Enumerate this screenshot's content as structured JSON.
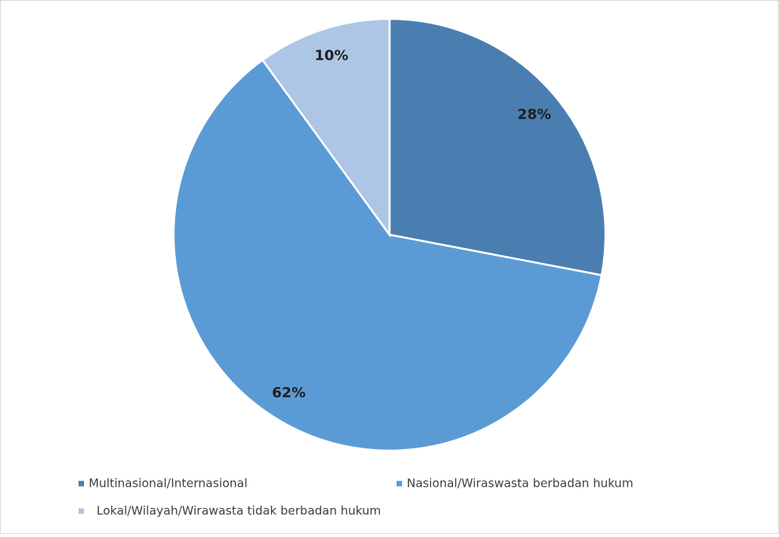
{
  "chart_data": {
    "type": "pie",
    "categories": [
      "Multinasional/Internasional",
      "Nasional/Wiraswasta berbadan hukum",
      "Lokal/Wilayah/Wirawasta tidak berbadan hukum"
    ],
    "values": [
      28,
      62,
      10
    ],
    "value_labels": [
      "28%",
      "62%",
      "10%"
    ],
    "colors": [
      "#4a7eb0",
      "#5b9bd5",
      "#adc6e5"
    ],
    "legend": "bottom"
  }
}
